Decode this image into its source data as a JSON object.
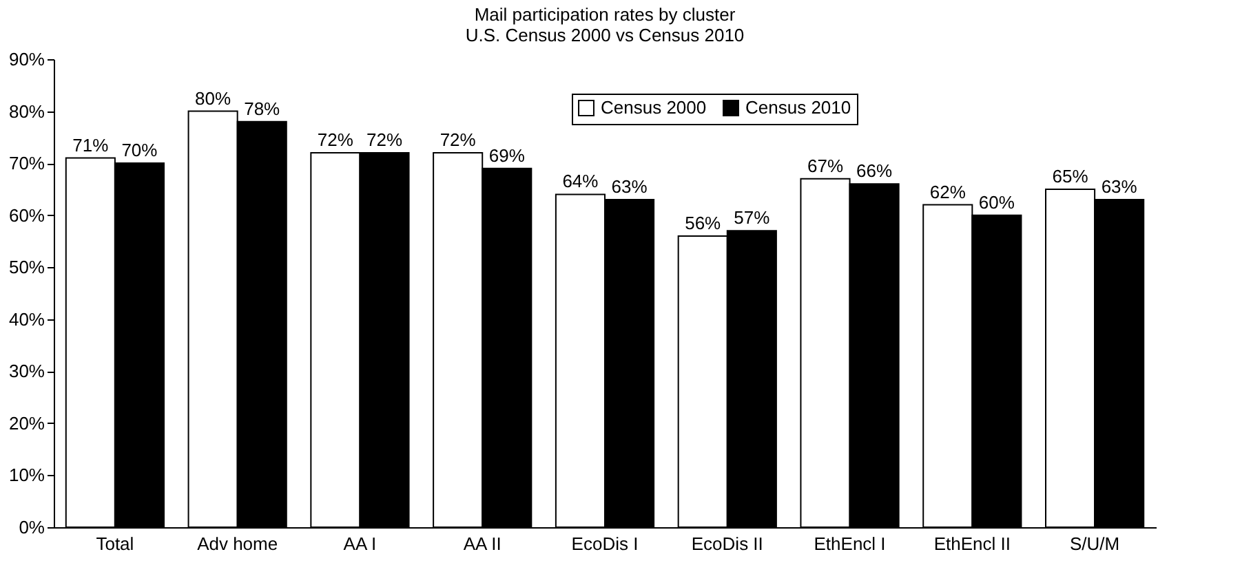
{
  "chart_data": {
    "type": "bar",
    "title": "Mail participation rates by cluster",
    "subtitle": "U.S. Census 2000 vs Census 2010",
    "categories": [
      "Total",
      "Adv home",
      "AA I",
      "AA II",
      "EcoDis I",
      "EcoDis II",
      "EthEncl I",
      "EthEncl II",
      "S/U/M"
    ],
    "series": [
      {
        "name": "Census 2000",
        "color": "#ffffff",
        "values": [
          71,
          80,
          72,
          72,
          64,
          56,
          67,
          62,
          65
        ],
        "value_labels": [
          "71%",
          "80%",
          "72%",
          "72%",
          "64%",
          "56%",
          "67%",
          "62%",
          "65%"
        ]
      },
      {
        "name": "Census 2010",
        "color": "#000000",
        "values": [
          70,
          78,
          72,
          69,
          63,
          57,
          66,
          60,
          63
        ],
        "value_labels": [
          "70%",
          "78%",
          "72%",
          "69%",
          "63%",
          "57%",
          "66%",
          "60%",
          "63%"
        ]
      }
    ],
    "ylim": [
      0,
      90
    ],
    "yticks": [
      {
        "value": 0,
        "label": "0%"
      },
      {
        "value": 10,
        "label": "10%"
      },
      {
        "value": 20,
        "label": "20%"
      },
      {
        "value": 30,
        "label": "30%"
      },
      {
        "value": 40,
        "label": "40%"
      },
      {
        "value": 50,
        "label": "50%"
      },
      {
        "value": 60,
        "label": "60%"
      },
      {
        "value": 70,
        "label": "70%"
      },
      {
        "value": 80,
        "label": "80%"
      },
      {
        "value": 90,
        "label": "90%"
      }
    ],
    "grid": false,
    "legend": "top"
  }
}
